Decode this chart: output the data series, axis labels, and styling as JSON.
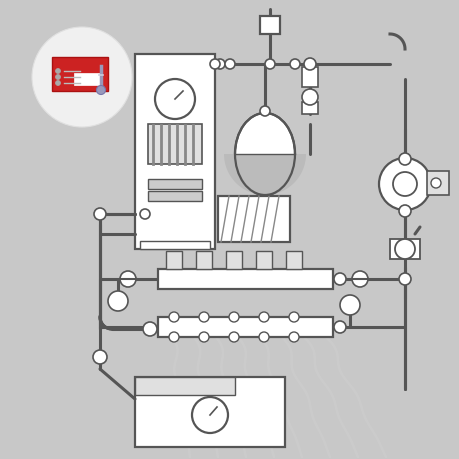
{
  "bg": "#c8c8c8",
  "lc": "#555555",
  "white": "#ffffff",
  "lgray": "#e0e0e0",
  "dgray": "#888888",
  "red": "#cc2222",
  "pipe_lw": 2.2,
  "comp_lw": 1.6
}
